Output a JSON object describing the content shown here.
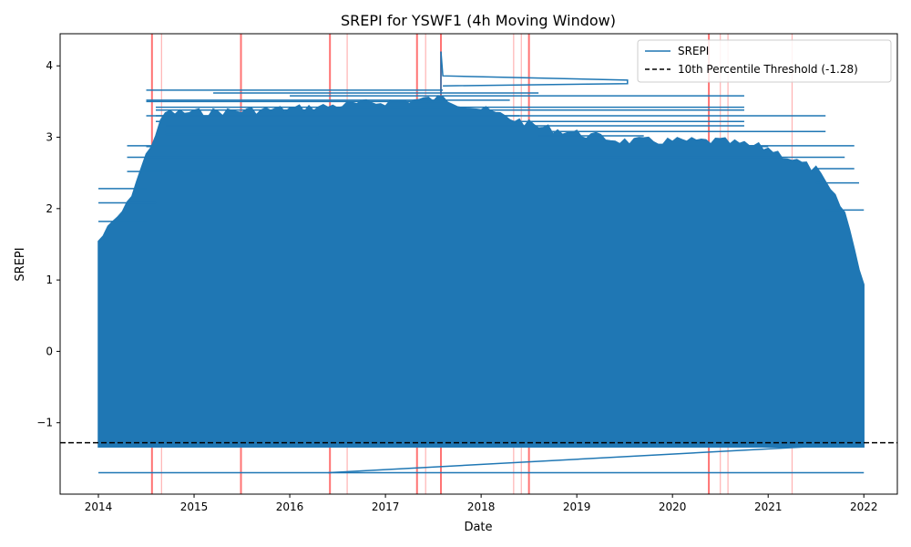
{
  "chart_data": {
    "type": "line",
    "title": "SREPI for YSWF1 (4h Moving Window)",
    "xlabel": "Date",
    "ylabel": "SREPI",
    "xlim": [
      2013.6,
      2022.35
    ],
    "ylim": [
      -2.0,
      4.45
    ],
    "x_ticks": [
      {
        "value": 2014,
        "label": "2014"
      },
      {
        "value": 2015,
        "label": "2015"
      },
      {
        "value": 2016,
        "label": "2016"
      },
      {
        "value": 2017,
        "label": "2017"
      },
      {
        "value": 2018,
        "label": "2018"
      },
      {
        "value": 2019,
        "label": "2019"
      },
      {
        "value": 2020,
        "label": "2020"
      },
      {
        "value": 2021,
        "label": "2021"
      },
      {
        "value": 2022,
        "label": "2022"
      }
    ],
    "y_ticks": [
      {
        "value": -1,
        "label": "−1"
      },
      {
        "value": 0,
        "label": "0"
      },
      {
        "value": 1,
        "label": "1"
      },
      {
        "value": 2,
        "label": "2"
      },
      {
        "value": 3,
        "label": "3"
      },
      {
        "value": 4,
        "label": "4"
      }
    ],
    "grid": false,
    "legend_position": "top-right",
    "series": [
      {
        "name": "SREPI",
        "color": "#1f77b4",
        "band": {
          "x_start": 2014.0,
          "x_end": 2022.0,
          "bottom": -1.34,
          "top_profile": [
            [
              2014.0,
              1.6
            ],
            [
              2014.3,
              2.1
            ],
            [
              2014.5,
              2.8
            ],
            [
              2014.7,
              3.4
            ],
            [
              2015.0,
              3.4
            ],
            [
              2016.0,
              3.45
            ],
            [
              2017.0,
              3.55
            ],
            [
              2017.6,
              3.6
            ],
            [
              2018.0,
              3.45
            ],
            [
              2018.6,
              3.2
            ],
            [
              2019.5,
              3.0
            ],
            [
              2020.5,
              3.0
            ],
            [
              2021.0,
              2.9
            ],
            [
              2021.5,
              2.6
            ],
            [
              2021.8,
              2.0
            ],
            [
              2022.0,
              1.0
            ]
          ]
        },
        "notable_points": [
          {
            "x": 2017.58,
            "y": 4.2
          },
          {
            "x": 2017.6,
            "y": 3.86
          },
          {
            "x": 2019.53,
            "y": 3.8
          },
          {
            "x": 2019.53,
            "y": 3.75
          },
          {
            "x": 2014.0,
            "y": -1.7
          },
          {
            "x": 2022.0,
            "y": -1.7
          }
        ],
        "connector": [
          [
            2016.4,
            -1.7
          ],
          [
            2021.5,
            -1.33
          ]
        ]
      },
      {
        "name": "10th Percentile Threshold (-1.28)",
        "color": "#000000",
        "style": "dashed",
        "y": -1.28
      }
    ],
    "highlight_lines": [
      {
        "x": 2014.56,
        "strength": "strong"
      },
      {
        "x": 2014.66,
        "strength": "weak"
      },
      {
        "x": 2015.49,
        "strength": "strong"
      },
      {
        "x": 2016.42,
        "strength": "strong"
      },
      {
        "x": 2016.6,
        "strength": "weak"
      },
      {
        "x": 2017.33,
        "strength": "strong"
      },
      {
        "x": 2017.42,
        "strength": "weak"
      },
      {
        "x": 2017.58,
        "strength": "strong"
      },
      {
        "x": 2018.34,
        "strength": "weak"
      },
      {
        "x": 2018.42,
        "strength": "weak"
      },
      {
        "x": 2018.5,
        "strength": "strong"
      },
      {
        "x": 2020.38,
        "strength": "strong"
      },
      {
        "x": 2020.5,
        "strength": "weak"
      },
      {
        "x": 2020.58,
        "strength": "weak"
      },
      {
        "x": 2021.25,
        "strength": "weak"
      }
    ],
    "highlight_color": "#ff0000"
  }
}
